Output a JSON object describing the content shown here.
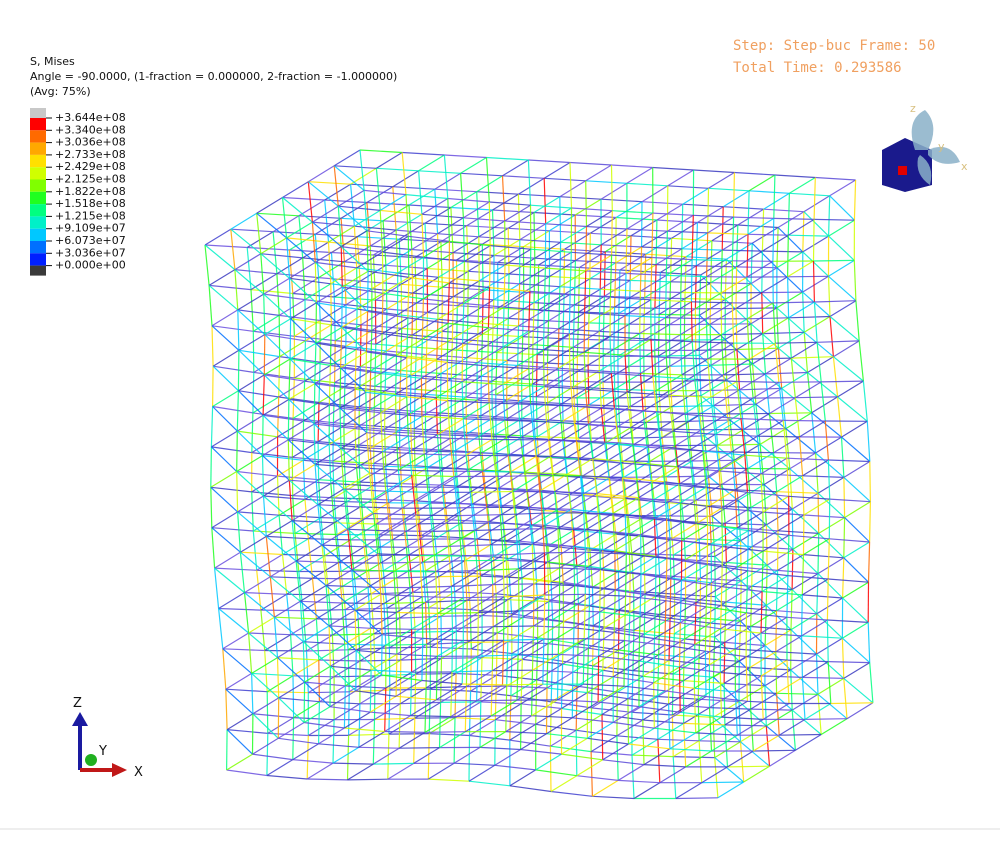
{
  "legend": {
    "title": "S, Mises",
    "subtitle": "Angle = -90.0000, (1-fraction = 0.000000, 2-fraction = -1.000000)",
    "averaging": "(Avg: 75%)",
    "labels": [
      "+3.644e+08",
      "+3.340e+08",
      "+3.036e+08",
      "+2.733e+08",
      "+2.429e+08",
      "+2.125e+08",
      "+1.822e+08",
      "+1.518e+08",
      "+1.215e+08",
      "+9.109e+07",
      "+6.073e+07",
      "+3.036e+07",
      "+0.000e+00"
    ],
    "band_colors": [
      "#ff0000",
      "#ff6a00",
      "#ffa800",
      "#ffe000",
      "#d0ff00",
      "#80ff00",
      "#20ff20",
      "#00ff80",
      "#00f0c8",
      "#00c8ff",
      "#0070ff",
      "#0020ff"
    ],
    "above_color": "#c8c8c8",
    "below_color": "#3a3a3a"
  },
  "status": {
    "step": "Step: Step-buc Frame: 50",
    "time": "Total Time: 0.293586"
  },
  "triad": {
    "z": "Z",
    "y": "Y",
    "x": "X"
  },
  "view_cube": {
    "z": "z",
    "y": "y",
    "x": "x"
  }
}
